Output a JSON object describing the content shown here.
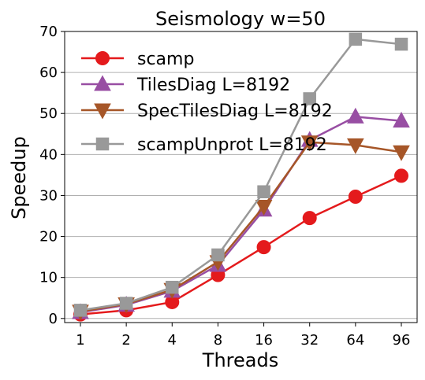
{
  "chart_data": {
    "type": "line",
    "title": "Seismology w=50",
    "xlabel": "Threads",
    "ylabel": "Speedup",
    "categories": [
      "1",
      "2",
      "4",
      "8",
      "16",
      "32",
      "64",
      "96"
    ],
    "ylim": [
      -1,
      70
    ],
    "yticks": [
      0,
      10,
      20,
      30,
      40,
      50,
      60,
      70
    ],
    "grid": "horizontal",
    "legend_position": "top-left",
    "series": [
      {
        "name": "scamp",
        "color": "#e41a1c",
        "marker": "circle",
        "values": [
          1.0,
          2.0,
          4.0,
          10.6,
          17.4,
          24.5,
          29.7,
          34.8
        ]
      },
      {
        "name": "TilesDiag L=8192",
        "color": "#984ea3",
        "marker": "triangle-up",
        "values": [
          1.5,
          3.3,
          6.7,
          13.0,
          26.5,
          43.5,
          49.2,
          48.2
        ]
      },
      {
        "name": "SpecTilesDiag L=8192",
        "color": "#a65628",
        "marker": "triangle-down",
        "values": [
          1.7,
          3.5,
          7.0,
          13.8,
          27.3,
          43.0,
          42.3,
          40.6
        ]
      },
      {
        "name": "scampUnprot L=8192",
        "color": "#999999",
        "marker": "square",
        "values": [
          2.0,
          3.7,
          7.6,
          15.5,
          30.9,
          53.6,
          68.1,
          66.9
        ]
      }
    ]
  }
}
